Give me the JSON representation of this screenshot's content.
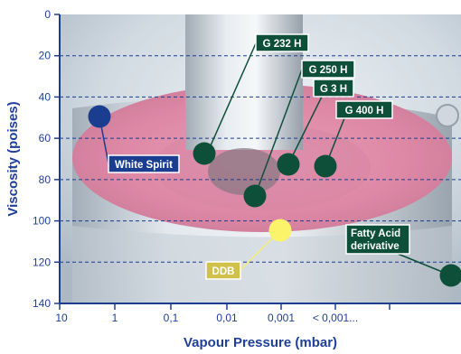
{
  "chart_data": {
    "type": "scatter",
    "title": "",
    "xlabel": "Vapour Pressure (mbar)",
    "ylabel": "Viscosity (poises)",
    "x_scale": "log, decreasing to the right",
    "x_ticks": [
      "10",
      "1",
      "0,1",
      "0,01",
      "0,001",
      "< 0,001..."
    ],
    "y_ticks": [
      0,
      20,
      40,
      60,
      80,
      100,
      120,
      140
    ],
    "ylim": [
      0,
      140
    ],
    "y_inverted": true,
    "grid": "horizontal dashed",
    "points": [
      {
        "label": "White Spirit",
        "x": 4,
        "y": 49,
        "color": "#1a3d8f",
        "label_style": "blue box"
      },
      {
        "label": "G 232 H",
        "x": 0.025,
        "y": 68,
        "color": "#0e4f3a",
        "label_style": "green box"
      },
      {
        "label": "G 250 H",
        "x": 0.003,
        "y": 88,
        "color": "#0e4f3a",
        "label_style": "green box"
      },
      {
        "label": "G 3 H",
        "x": 0.0008,
        "y": 73,
        "color": "#0e4f3a",
        "label_style": "green box"
      },
      {
        "label": "G 400 H",
        "x": 0.0002,
        "y": 74,
        "color": "#0e4f3a",
        "label_style": "green box"
      },
      {
        "label": "DDB",
        "x": 0.0011,
        "y": 104,
        "color": "#fbf36a",
        "label_style": "yellow box"
      },
      {
        "label": "Fatty Acid\nderivative",
        "x": 1e-07,
        "y": 127,
        "color": "#0e4f3a",
        "label_style": "green box"
      }
    ]
  },
  "colors": {
    "axis": "#1a3d8f",
    "grid": "#1a3d8f",
    "label_text": "#1f3f9a",
    "green_box": "#0e4f3a",
    "blue_box": "#1a3d8f",
    "yellow_box": "#cfc14a"
  }
}
